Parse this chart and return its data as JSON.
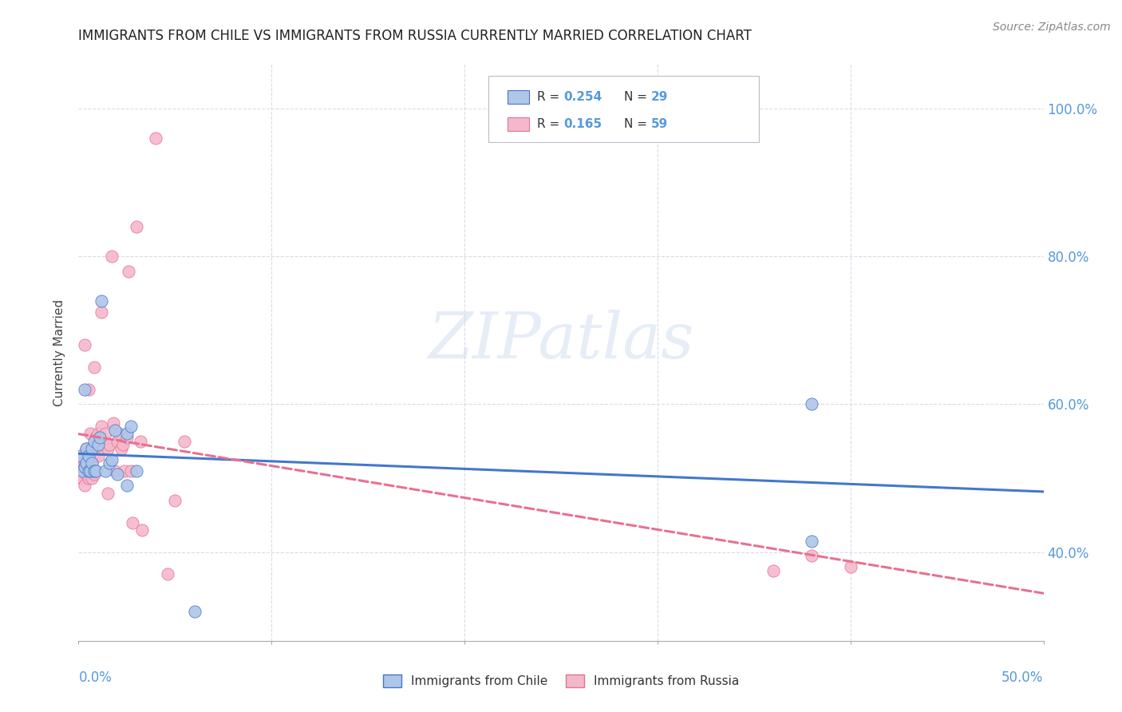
{
  "title": "IMMIGRANTS FROM CHILE VS IMMIGRANTS FROM RUSSIA CURRENTLY MARRIED CORRELATION CHART",
  "source": "Source: ZipAtlas.com",
  "ylabel": "Currently Married",
  "watermark": "ZIPatlas",
  "chile_R": 0.254,
  "chile_N": 29,
  "russia_R": 0.165,
  "russia_N": 59,
  "chile_color": "#aec6e8",
  "russia_color": "#f4b8cc",
  "chile_line_color": "#4477cc",
  "russia_line_color": "#e87090",
  "background_color": "#ffffff",
  "grid_color": "#d8dce8",
  "xmin": 0.0,
  "xmax": 0.5,
  "ymin": 0.28,
  "ymax": 1.06,
  "yticks": [
    0.4,
    0.6,
    0.8,
    1.0
  ],
  "ytick_labels": [
    "40.0%",
    "60.0%",
    "80.0%",
    "100.0%"
  ],
  "chile_x": [
    0.001,
    0.002,
    0.003,
    0.003,
    0.004,
    0.004,
    0.005,
    0.005,
    0.006,
    0.007,
    0.007,
    0.008,
    0.008,
    0.009,
    0.01,
    0.011,
    0.012,
    0.014,
    0.016,
    0.017,
    0.019,
    0.02,
    0.025,
    0.025,
    0.027,
    0.03,
    0.38,
    0.38,
    0.06
  ],
  "chile_y": [
    0.53,
    0.51,
    0.62,
    0.515,
    0.52,
    0.54,
    0.51,
    0.53,
    0.51,
    0.52,
    0.54,
    0.51,
    0.55,
    0.51,
    0.545,
    0.555,
    0.74,
    0.51,
    0.52,
    0.525,
    0.565,
    0.505,
    0.49,
    0.56,
    0.57,
    0.51,
    0.6,
    0.415,
    0.32
  ],
  "russia_x": [
    0.001,
    0.001,
    0.001,
    0.002,
    0.002,
    0.002,
    0.003,
    0.003,
    0.003,
    0.004,
    0.004,
    0.004,
    0.005,
    0.005,
    0.006,
    0.006,
    0.006,
    0.007,
    0.007,
    0.007,
    0.008,
    0.008,
    0.008,
    0.009,
    0.009,
    0.01,
    0.01,
    0.011,
    0.012,
    0.012,
    0.013,
    0.013,
    0.014,
    0.015,
    0.015,
    0.016,
    0.017,
    0.018,
    0.019,
    0.02,
    0.021,
    0.022,
    0.023,
    0.024,
    0.025,
    0.026,
    0.027,
    0.028,
    0.03,
    0.032,
    0.033,
    0.04,
    0.046,
    0.05,
    0.055,
    0.36,
    0.38,
    0.4,
    0.003
  ],
  "russia_y": [
    0.52,
    0.51,
    0.5,
    0.51,
    0.53,
    0.5,
    0.51,
    0.52,
    0.49,
    0.505,
    0.52,
    0.54,
    0.5,
    0.62,
    0.51,
    0.53,
    0.56,
    0.5,
    0.51,
    0.52,
    0.505,
    0.53,
    0.65,
    0.51,
    0.555,
    0.53,
    0.56,
    0.555,
    0.725,
    0.57,
    0.54,
    0.545,
    0.56,
    0.54,
    0.48,
    0.545,
    0.8,
    0.575,
    0.51,
    0.55,
    0.56,
    0.54,
    0.545,
    0.51,
    0.555,
    0.78,
    0.51,
    0.44,
    0.84,
    0.55,
    0.43,
    0.96,
    0.37,
    0.47,
    0.55,
    0.375,
    0.395,
    0.38,
    0.68
  ]
}
